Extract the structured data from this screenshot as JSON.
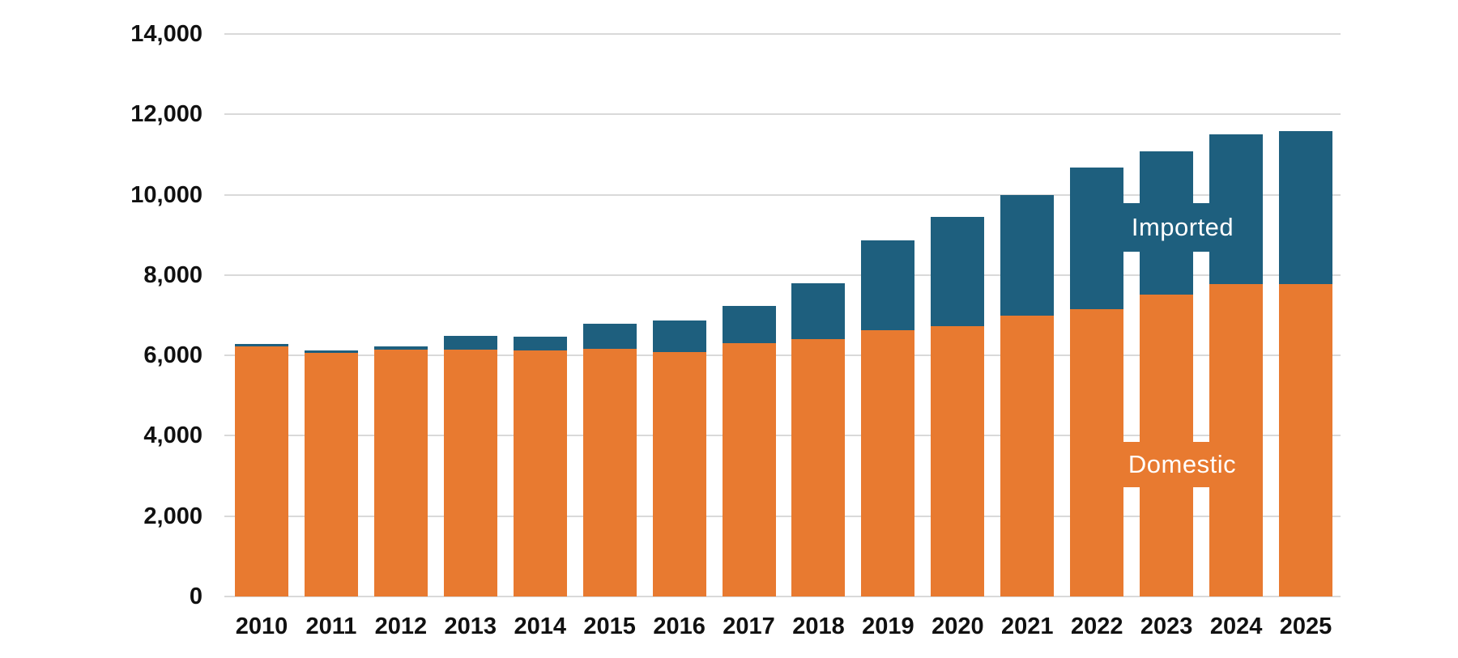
{
  "chart_data": {
    "type": "bar",
    "stacked": true,
    "title": "",
    "categories": [
      "2010",
      "2011",
      "2012",
      "2013",
      "2014",
      "2015",
      "2016",
      "2017",
      "2018",
      "2019",
      "2020",
      "2021",
      "2022",
      "2023",
      "2024",
      "2025"
    ],
    "series": [
      {
        "name": "Domestic",
        "color": "#e87a30",
        "values": [
          6230,
          6070,
          6150,
          6150,
          6130,
          6160,
          6090,
          6300,
          6410,
          6620,
          6720,
          6980,
          7150,
          7520,
          7770,
          7770
        ]
      },
      {
        "name": "Imported",
        "color": "#1e5f7e",
        "values": [
          50,
          50,
          80,
          340,
          340,
          620,
          770,
          930,
          1380,
          2240,
          2730,
          3010,
          3530,
          3550,
          3740,
          3810
        ]
      }
    ],
    "totals": [
      6280,
      6120,
      6230,
      6490,
      6470,
      6780,
      6860,
      7230,
      7790,
      8860,
      9450,
      9990,
      10680,
      11070,
      11510,
      11580
    ],
    "ylim": [
      0,
      14000
    ],
    "ytick_interval": 2000,
    "ytick_labels": [
      "0",
      "2,000",
      "4,000",
      "6,000",
      "8,000",
      "10,000",
      "12,000",
      "14,000"
    ],
    "grid": true,
    "xlabel": "",
    "ylabel": "",
    "legend_position": "inline-on-bars"
  },
  "labels": {
    "imported": "Imported",
    "domestic": "Domestic"
  },
  "colors": {
    "domestic_orange": "#e87a30",
    "imported_blue": "#1e5f7e",
    "gridline_gray": "#d9d9d9",
    "axis_text": "#111111",
    "background": "#ffffff",
    "series_label_text": "#ffffff"
  }
}
